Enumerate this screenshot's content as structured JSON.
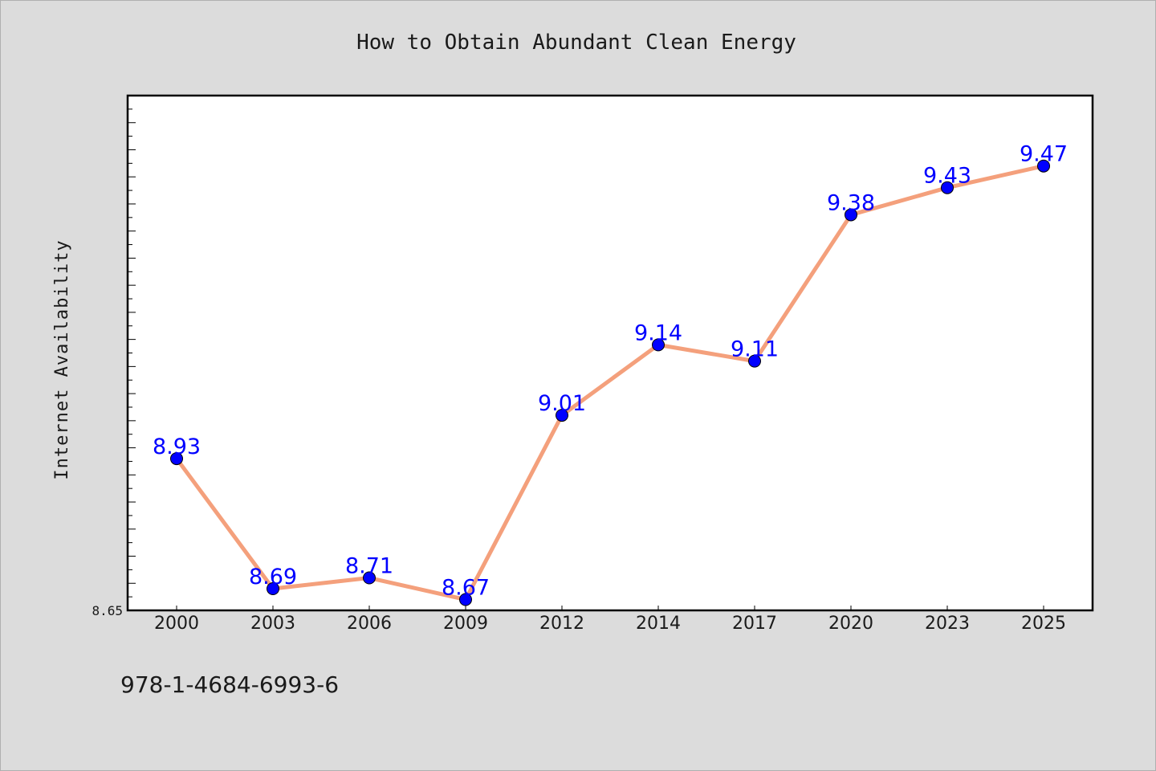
{
  "chart_data": {
    "type": "line",
    "title": "How to Obtain Abundant Clean Energy",
    "xlabel": "",
    "ylabel": "Internet Availability",
    "categories": [
      "2000",
      "2003",
      "2006",
      "2009",
      "2012",
      "2014",
      "2017",
      "2020",
      "2023",
      "2025"
    ],
    "series": [
      {
        "values": [
          8.93,
          8.69,
          8.71,
          8.67,
          9.01,
          9.14,
          9.11,
          9.38,
          9.43,
          9.47
        ],
        "labels": [
          "8.93",
          "8.69",
          "8.71",
          "8.67",
          "9.01",
          "9.14",
          "9.11",
          "9.38",
          "9.43",
          "9.47"
        ]
      }
    ],
    "ylim": [
      8.65,
      9.6
    ],
    "yticks_labeled": [
      "8.65"
    ],
    "grid": false,
    "legend": "none",
    "colors": {
      "line": "#f4a07c",
      "marker_fill": "#0000ff",
      "marker_edge": "#000000",
      "data_label": "#0000ff",
      "background": "#dcdcdc",
      "plot_background": "#ffffff"
    }
  },
  "footnote": "978-1-4684-6993-6"
}
